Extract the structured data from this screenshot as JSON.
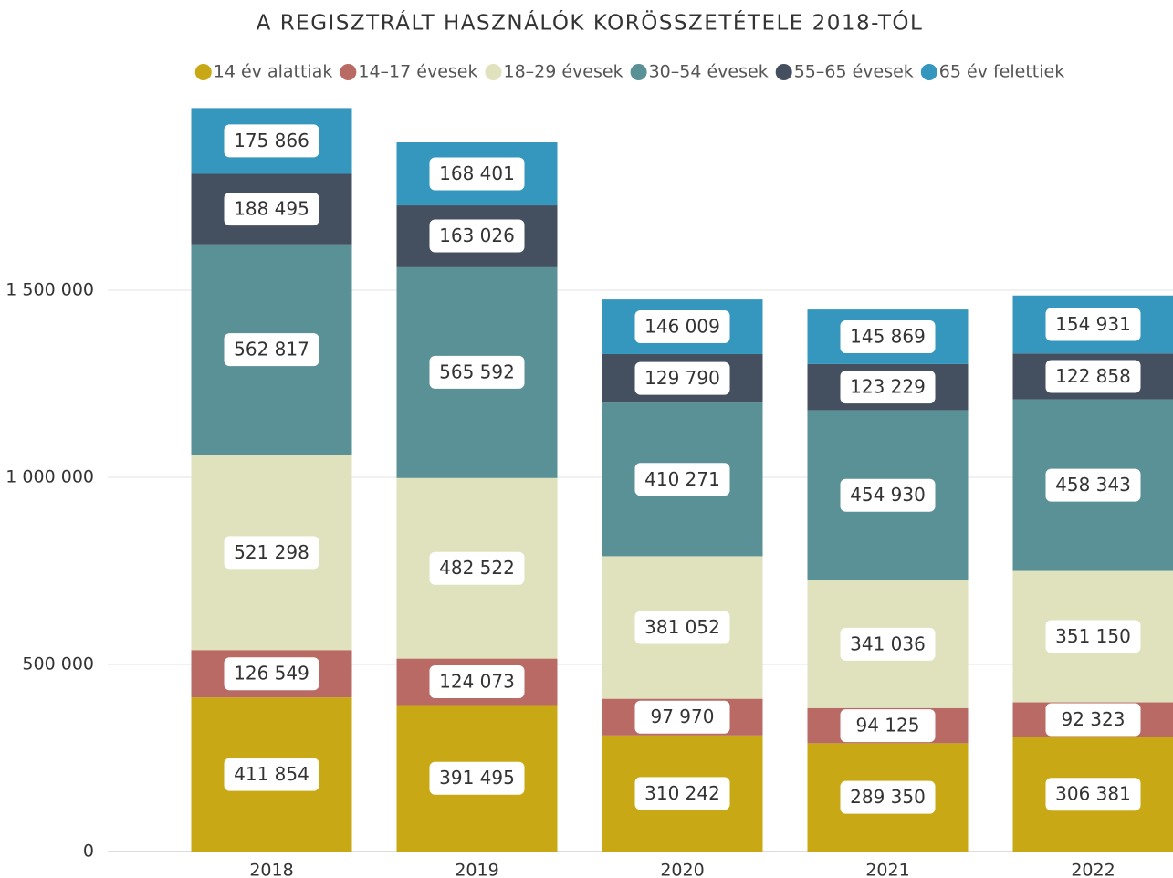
{
  "chart_data": {
    "type": "stacked_bar",
    "title": "A REGISZTRÁLT HASZNÁLÓK KORÖSSZETÉTELE 2018-TÓL",
    "categories": [
      "2018",
      "2019",
      "2020",
      "2021",
      "2022"
    ],
    "series": [
      {
        "name": "14 év alattiak",
        "color": "#c9a815",
        "values": [
          411854,
          391495,
          310242,
          289350,
          306381
        ],
        "value_labels": [
          "411 854",
          "391 495",
          "310 242",
          "289 350",
          "306 381"
        ]
      },
      {
        "name": "14–17 évesek",
        "color": "#b96a64",
        "values": [
          126549,
          124073,
          97970,
          94125,
          92323
        ],
        "value_labels": [
          "126 549",
          "124 073",
          "97 970",
          "94 125",
          "92 323"
        ]
      },
      {
        "name": "18–29 évesek",
        "color": "#dfe2bd",
        "values": [
          521298,
          482522,
          381052,
          341036,
          351150
        ],
        "value_labels": [
          "521 298",
          "482 522",
          "381 052",
          "341 036",
          "351 150"
        ]
      },
      {
        "name": "30–54 évesek",
        "color": "#5a9197",
        "values": [
          562817,
          565592,
          410271,
          454930,
          458343
        ],
        "value_labels": [
          "562 817",
          "565 592",
          "410 271",
          "454 930",
          "458 343"
        ]
      },
      {
        "name": "55–65 évesek",
        "color": "#444f60",
        "values": [
          188495,
          163026,
          129790,
          123229,
          122858
        ],
        "value_labels": [
          "188 495",
          "163 026",
          "129 790",
          "123 229",
          "122 858"
        ]
      },
      {
        "name": "65 év felettiek",
        "color": "#3697be",
        "values": [
          175866,
          168401,
          146009,
          145869,
          154931
        ],
        "value_labels": [
          "175 866",
          "168 401",
          "146 009",
          "145 869",
          "154 931"
        ]
      }
    ],
    "ylim": [
      0,
      2000000
    ],
    "yticks": [
      0,
      {
        "value": 500000,
        "label": "500 000"
      },
      {
        "value": 1000000,
        "label": "1 000 000"
      },
      {
        "value": 1500000,
        "label": "1 500 000"
      }
    ],
    "grid": true,
    "legend": "top"
  }
}
